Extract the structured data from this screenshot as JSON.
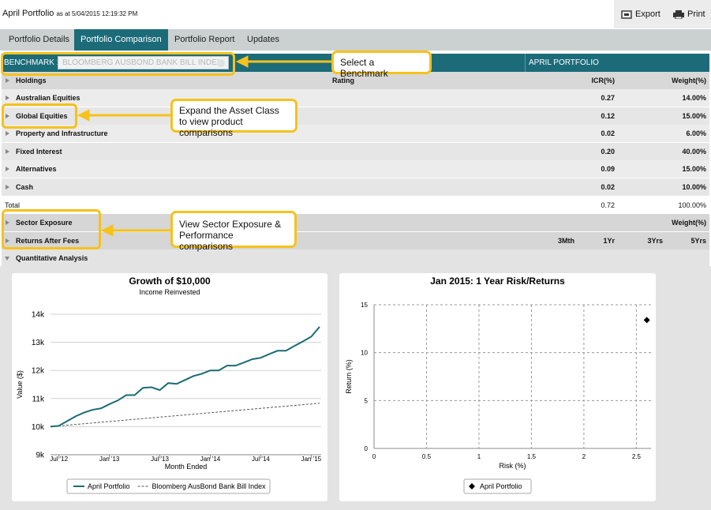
{
  "header": {
    "title": "April Portfolio",
    "timestamp": "as at 5/04/2015 12:19:32 PM",
    "actions": [
      "Export",
      "Print"
    ]
  },
  "tabs": [
    "Portfolio Details",
    "Portfolio Comparison",
    "Portfolio Report",
    "Updates"
  ],
  "benchmark": {
    "label": "BENCHMARK :",
    "selected": "BLOOMBERG AUSBOND BANK BILL INDEX",
    "portfolio": "APRIL PORTFOLIO"
  },
  "table": {
    "columns": [
      "Holdings",
      "Rating",
      "ICR(%)",
      "Weight(%)"
    ],
    "rows": [
      [
        "Australian Equities",
        "0.27",
        "14.00%"
      ],
      [
        "Global Equities",
        "0.12",
        "15.00%"
      ],
      [
        "Property and Infrastructure",
        "0.02",
        "6.00%"
      ],
      [
        "Fixed Interest",
        "0.20",
        "40.00%"
      ],
      [
        "Alternatives",
        "0.09",
        "15.00%"
      ],
      [
        "Cash",
        "0.02",
        "10.00%"
      ]
    ],
    "total": [
      "Total",
      "0.72",
      "100.00%"
    ]
  },
  "sections": [
    {
      "label": "Sector Exposure",
      "columns": [
        "Weight(%)"
      ]
    },
    {
      "label": "Returns After Fees",
      "columns": [
        "3Mth",
        "1Yr",
        "3Yrs",
        "5Yrs"
      ]
    },
    {
      "label": "Quantitative Analysis"
    }
  ],
  "callouts": [
    "Select a Benchmark",
    "Expand the Asset Class to view product comparisons",
    "View Sector Exposure & Performance comparisons"
  ],
  "chart_data": [
    {
      "type": "line",
      "title": "Growth of $10,000",
      "subtitle": "Income Reinvested",
      "x_label": "Month Ended",
      "y_label": "Value ($)",
      "categories": [
        null,
        "Jul '12",
        null,
        null,
        null,
        null,
        null,
        "Jan '13",
        null,
        null,
        null,
        null,
        null,
        "Jul '13",
        null,
        null,
        null,
        null,
        null,
        "Jan '14",
        null,
        null,
        null,
        null,
        null,
        "Jul '14",
        null,
        null,
        null,
        null,
        null,
        "Jan '15",
        null
      ],
      "ylim": [
        9000,
        14000
      ],
      "yticks": [
        {
          "value": 9000,
          "label": "9k"
        },
        {
          "value": 10000,
          "label": "10k"
        },
        {
          "value": 11000,
          "label": "11k"
        },
        {
          "value": 12000,
          "label": "12k"
        },
        {
          "value": 13000,
          "label": "13k"
        },
        {
          "value": 14000,
          "label": "14k"
        }
      ],
      "grid": true,
      "series": [
        {
          "name": "April Portfolio",
          "color": "#1b6b73",
          "dash": false,
          "values": [
            10000,
            10030,
            10200,
            10370,
            10500,
            10600,
            10650,
            10800,
            10930,
            11120,
            11120,
            11380,
            11400,
            11300,
            11550,
            11520,
            11660,
            11800,
            11880,
            12000,
            12000,
            12170,
            12170,
            12280,
            12400,
            12450,
            12580,
            12700,
            12700,
            12870,
            13030,
            13200,
            13550
          ]
        },
        {
          "name": "Bloomberg AusBond Bank Bill Index",
          "color": "#555555",
          "dash": true,
          "values": [
            10000,
            10026,
            10052,
            10078,
            10104,
            10130,
            10156,
            10182,
            10208,
            10234,
            10260,
            10286,
            10312,
            10338,
            10364,
            10390,
            10416,
            10442,
            10468,
            10494,
            10520,
            10546,
            10572,
            10598,
            10624,
            10650,
            10676,
            10702,
            10728,
            10754,
            10780,
            10806,
            10832
          ]
        }
      ]
    },
    {
      "type": "scatter",
      "title": "Jan 2015: 1 Year Risk/Returns",
      "x_label": "Risk (%)",
      "y_label": "Return (%)",
      "xlim": [
        0,
        2.64
      ],
      "ylim": [
        0,
        15
      ],
      "xticks": [
        0,
        0.5,
        1,
        1.5,
        2,
        2.5
      ],
      "yticks": [
        0,
        5,
        10,
        15
      ],
      "grid": true,
      "series": [
        {
          "name": "April Portfolio",
          "color": "#000000",
          "x": [
            2.6
          ],
          "values": [
            13.4
          ]
        }
      ]
    }
  ]
}
